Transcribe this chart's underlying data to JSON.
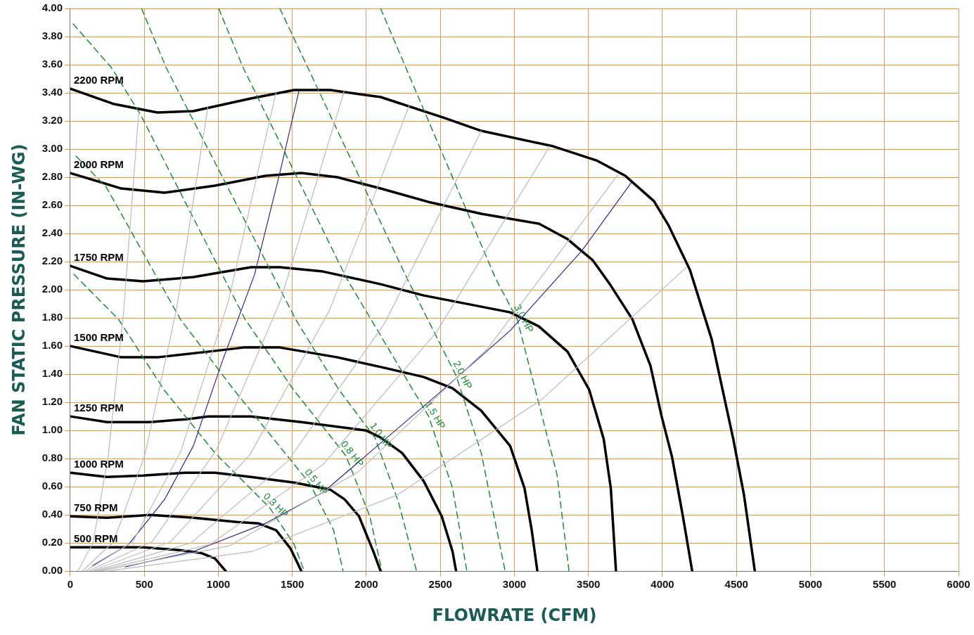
{
  "chart_data": {
    "type": "line",
    "xlabel": "FLOWRATE (CFM)",
    "ylabel": "FAN STATIC PRESSURE (IN-WG)",
    "xlim": [
      0,
      6000
    ],
    "xticks": [
      0,
      500,
      1000,
      1500,
      2000,
      2500,
      3000,
      3500,
      4000,
      4500,
      5000,
      5500,
      6000
    ],
    "ylim": [
      0,
      4
    ],
    "yticks": [
      {
        "value": 0,
        "label": "0.00"
      },
      {
        "value": 0.2,
        "label": "0.20"
      },
      {
        "value": 0.4,
        "label": "0.40"
      },
      {
        "value": 0.6,
        "label": "0.60"
      },
      {
        "value": 0.8,
        "label": "0.80"
      },
      {
        "value": 1,
        "label": "1.00"
      },
      {
        "value": 1.2,
        "label": "1.20"
      },
      {
        "value": 1.4,
        "label": "1.40"
      },
      {
        "value": 1.6,
        "label": "1.60"
      },
      {
        "value": 1.8,
        "label": "1.80"
      },
      {
        "value": 2,
        "label": "2.00"
      },
      {
        "value": 2.2,
        "label": "2.20"
      },
      {
        "value": 2.4,
        "label": "2.40"
      },
      {
        "value": 2.6,
        "label": "2.60"
      },
      {
        "value": 2.8,
        "label": "2.80"
      },
      {
        "value": 3,
        "label": "3.00"
      },
      {
        "value": 3.2,
        "label": "3.20"
      },
      {
        "value": 3.4,
        "label": "3.40"
      },
      {
        "value": 3.6,
        "label": "3.60"
      },
      {
        "value": 3.8,
        "label": "3.80"
      },
      {
        "value": 4,
        "label": "4.00"
      }
    ],
    "grid": true,
    "legend": false,
    "marker": "none",
    "series": [
      {
        "color": "#bbbbbb",
        "line_style": "solid",
        "x": [
          50,
          153,
          256,
          359,
          462
        ],
        "values": [
          0,
          0.2,
          0.82,
          1.83,
          3.26
        ]
      },
      {
        "color": "#bbbbbb",
        "line_style": "solid",
        "x": [
          80,
          292,
          505,
          717,
          929
        ],
        "values": [
          0,
          0.21,
          0.83,
          1.86,
          3.3
        ]
      },
      {
        "color": "#bbbbbb",
        "line_style": "solid",
        "x": [
          100,
          423,
          746,
          1068,
          1391
        ],
        "values": [
          0,
          0.21,
          0.85,
          1.92,
          3.41
        ]
      },
      {
        "color": "#bbbbbb",
        "line_style": "solid",
        "x": [
          120,
          553,
          986,
          1419,
          1852
        ],
        "values": [
          0,
          0.21,
          0.86,
          1.92,
          3.42
        ]
      },
      {
        "color": "#bbbbbb",
        "line_style": "solid",
        "x": [
          140,
          678,
          1215,
          1753,
          2290
        ],
        "values": [
          0,
          0.21,
          0.83,
          1.86,
          3.31
        ]
      },
      {
        "color": "#bbbbbb",
        "line_style": "solid",
        "x": [
          160,
          814,
          1468,
          2122,
          2776
        ],
        "values": [
          0,
          0.2,
          0.78,
          1.76,
          3.13
        ]
      },
      {
        "color": "#bbbbbb",
        "line_style": "solid",
        "x": [
          180,
          945,
          1709,
          2474,
          3238
        ],
        "values": [
          0,
          0.19,
          0.76,
          1.7,
          3.02
        ]
      },
      {
        "color": "#bbbbbb",
        "line_style": "solid",
        "x": [
          200,
          1075,
          1950,
          2825,
          3700
        ],
        "values": [
          0,
          0.18,
          0.71,
          1.59,
          2.82
        ]
      },
      {
        "color": "#bbbbbb",
        "line_style": "solid",
        "x": [
          250,
          1228,
          2206,
          3184,
          4162
        ],
        "values": [
          0,
          0.14,
          0.54,
          1.22,
          2.16
        ]
      },
      {
        "color": "#2b2b8a",
        "line_style": "solid",
        "x": [
          151,
          394,
          637,
          831,
          1026,
          1245,
          1415,
          1546
        ],
        "values": [
          0.04,
          0.19,
          0.51,
          0.89,
          1.49,
          2.11,
          2.83,
          3.42
        ]
      },
      {
        "color": "#2b2b8a",
        "line_style": "solid",
        "x": [
          370,
          831,
          1318,
          1707,
          2096,
          2485,
          2971,
          3457,
          3788
        ],
        "values": [
          0.03,
          0.14,
          0.34,
          0.56,
          0.91,
          1.26,
          1.71,
          2.28,
          2.76
        ]
      },
      {
        "name": "0.3 HP",
        "color": "#1e8a3c",
        "line_style": "dashed",
        "x": [
          24,
          326,
          632,
          977,
          1347,
          1512,
          1580
        ],
        "values": [
          2.11,
          1.79,
          1.29,
          0.84,
          0.45,
          0.19,
          0
        ]
      },
      {
        "name": "0.5 HP",
        "color": "#1e8a3c",
        "line_style": "dashed",
        "x": [
          39,
          243,
          744,
          1104,
          1619,
          1779,
          1843
        ],
        "values": [
          2.95,
          2.73,
          1.79,
          1.29,
          0.62,
          0.29,
          0
        ]
      },
      {
        "name": "0.8 HP",
        "color": "#1e8a3c",
        "line_style": "dashed",
        "x": [
          19,
          277,
          472,
          1181,
          1507,
          1862,
          2023,
          2105
        ],
        "values": [
          3.89,
          3.58,
          3.25,
          1.79,
          1.29,
          0.82,
          0.39,
          0
        ]
      },
      {
        "name": "1.0 HP",
        "color": "#1e8a3c",
        "line_style": "dashed",
        "x": [
          481,
          647,
          1522,
          1814,
          2057,
          2217,
          2339
        ],
        "values": [
          4,
          3.58,
          1.79,
          1.29,
          0.95,
          0.49,
          0
        ]
      },
      {
        "name": "1.5 HP",
        "color": "#1e8a3c",
        "line_style": "dashed",
        "x": [
          1002,
          1167,
          1867,
          2421,
          2582,
          2679
        ],
        "values": [
          4,
          3.58,
          2.08,
          1.1,
          0.59,
          0
        ]
      },
      {
        "name": "2.0 HP",
        "color": "#1e8a3c",
        "line_style": "dashed",
        "x": [
          1415,
          1604,
          2275,
          2606,
          2776,
          2937
        ],
        "values": [
          4,
          3.58,
          2.08,
          1.39,
          0.84,
          0
        ]
      },
      {
        "name": "3.0 HP",
        "color": "#1e8a3c",
        "line_style": "dashed",
        "x": [
          2096,
          2266,
          2873,
          3019,
          3287,
          3369
        ],
        "values": [
          4,
          3.58,
          2.08,
          1.79,
          0.69,
          0
        ]
      },
      {
        "name": "2200 RPM",
        "color": "#000000",
        "line_style": "solid",
        "x": [
          0,
          297,
          588,
          831,
          1220,
          1512,
          1755,
          2096,
          2533,
          2776,
          3262,
          3554,
          3749,
          3943,
          4040,
          4186,
          4332,
          4478,
          4551,
          4624
        ],
        "values": [
          3.43,
          3.32,
          3.26,
          3.27,
          3.36,
          3.42,
          3.42,
          3.37,
          3.22,
          3.13,
          3.02,
          2.92,
          2.81,
          2.63,
          2.46,
          2.14,
          1.65,
          0.94,
          0.54,
          0
        ]
      },
      {
        "name": "2000 RPM",
        "color": "#000000",
        "line_style": "solid",
        "x": [
          0,
          345,
          637,
          977,
          1318,
          1561,
          1804,
          2096,
          2436,
          2776,
          3165,
          3359,
          3529,
          3651,
          3797,
          3919,
          3992,
          4065,
          4138,
          4201
        ],
        "values": [
          2.83,
          2.72,
          2.69,
          2.74,
          2.81,
          2.83,
          2.8,
          2.72,
          2.62,
          2.54,
          2.47,
          2.36,
          2.21,
          2.03,
          1.79,
          1.46,
          1.11,
          0.81,
          0.39,
          0
        ]
      },
      {
        "name": "1750 RPM",
        "color": "#000000",
        "line_style": "solid",
        "x": [
          0,
          248,
          491,
          831,
          1220,
          1415,
          1707,
          2096,
          2387,
          2728,
          2971,
          3165,
          3359,
          3505,
          3603,
          3651,
          3686
        ],
        "values": [
          2.17,
          2.08,
          2.06,
          2.09,
          2.16,
          2.16,
          2.13,
          2.04,
          1.96,
          1.89,
          1.84,
          1.74,
          1.56,
          1.29,
          0.94,
          0.59,
          0
        ]
      },
      {
        "name": "1500 RPM",
        "color": "#000000",
        "line_style": "solid",
        "x": [
          0,
          345,
          588,
          929,
          1172,
          1415,
          1804,
          2144,
          2387,
          2582,
          2776,
          2971,
          3068,
          3117,
          3155
        ],
        "values": [
          1.6,
          1.52,
          1.52,
          1.56,
          1.59,
          1.59,
          1.52,
          1.44,
          1.38,
          1.3,
          1.14,
          0.89,
          0.59,
          0.29,
          0
        ]
      },
      {
        "name": "1250 RPM",
        "color": "#000000",
        "line_style": "solid",
        "x": [
          0,
          248,
          540,
          783,
          929,
          1220,
          1561,
          1998,
          2096,
          2241,
          2387,
          2509,
          2582,
          2606
        ],
        "values": [
          1.1,
          1.06,
          1.06,
          1.08,
          1.1,
          1.1,
          1.06,
          1,
          0.95,
          0.84,
          0.64,
          0.39,
          0.14,
          0
        ]
      },
      {
        "name": "1000 RPM",
        "color": "#000000",
        "line_style": "solid",
        "x": [
          0,
          248,
          491,
          783,
          977,
          1220,
          1512,
          1755,
          1853,
          1950,
          2047,
          2096
        ],
        "values": [
          0.7,
          0.67,
          0.68,
          0.7,
          0.7,
          0.67,
          0.63,
          0.58,
          0.51,
          0.39,
          0.14,
          0
        ]
      },
      {
        "name": "750 RPM",
        "color": "#000000",
        "line_style": "solid",
        "x": [
          0,
          248,
          540,
          831,
          1123,
          1269,
          1391,
          1488,
          1561
        ],
        "values": [
          0.39,
          0.38,
          0.4,
          0.38,
          0.35,
          0.34,
          0.29,
          0.16,
          0
        ]
      },
      {
        "name": "500 RPM",
        "color": "#000000",
        "line_style": "solid",
        "x": [
          0,
          248,
          491,
          734,
          880,
          977,
          1050
        ],
        "values": [
          0.17,
          0.17,
          0.17,
          0.15,
          0.13,
          0.09,
          0
        ]
      }
    ]
  }
}
